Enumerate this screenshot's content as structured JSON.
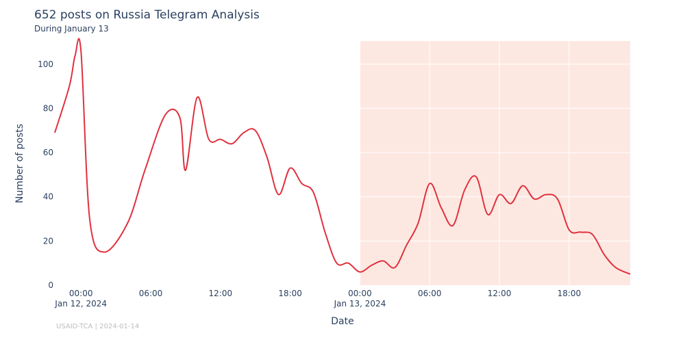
{
  "title": "652 posts on Russia Telegram Analysis",
  "subtitle": "During January 13",
  "footer": "USAID-TCA | 2024-01-14",
  "chart_data": {
    "type": "line",
    "xlabel": "Date",
    "ylabel": "Number of posts",
    "xlim": [
      "2024-01-11 21:45",
      "2024-01-13 23:15"
    ],
    "ylim": [
      0,
      112
    ],
    "yticks": [
      0,
      20,
      40,
      60,
      80,
      100
    ],
    "xticks": [
      {
        "time": "2024-01-12 00:00",
        "label": "00:00",
        "sublabel": "Jan 12, 2024"
      },
      {
        "time": "2024-01-12 06:00",
        "label": "06:00",
        "sublabel": ""
      },
      {
        "time": "2024-01-12 12:00",
        "label": "12:00",
        "sublabel": ""
      },
      {
        "time": "2024-01-12 18:00",
        "label": "18:00",
        "sublabel": ""
      },
      {
        "time": "2024-01-13 00:00",
        "label": "00:00",
        "sublabel": "Jan 13, 2024"
      },
      {
        "time": "2024-01-13 06:00",
        "label": "06:00",
        "sublabel": ""
      },
      {
        "time": "2024-01-13 12:00",
        "label": "12:00",
        "sublabel": ""
      },
      {
        "time": "2024-01-13 18:00",
        "label": "18:00",
        "sublabel": ""
      }
    ],
    "highlight": {
      "start": "2024-01-13 00:00",
      "end": "2024-01-13 23:15",
      "color": "#fde8e1"
    },
    "series": [
      {
        "color": "#e0303e",
        "x": [
          "2024-01-11 21:45",
          "2024-01-11 23:00",
          "2024-01-11 23:30",
          "2024-01-12 00:00",
          "2024-01-12 00:45",
          "2024-01-12 02:00",
          "2024-01-12 04:00",
          "2024-01-12 05:30",
          "2024-01-12 07:15",
          "2024-01-12 08:30",
          "2024-01-12 09:00",
          "2024-01-12 10:00",
          "2024-01-12 11:00",
          "2024-01-12 12:00",
          "2024-01-12 13:00",
          "2024-01-12 14:00",
          "2024-01-12 15:00",
          "2024-01-12 16:00",
          "2024-01-12 17:00",
          "2024-01-12 18:00",
          "2024-01-12 19:00",
          "2024-01-12 20:00",
          "2024-01-12 21:00",
          "2024-01-12 22:00",
          "2024-01-12 23:00",
          "2024-01-13 00:00",
          "2024-01-13 01:00",
          "2024-01-13 02:00",
          "2024-01-13 03:00",
          "2024-01-13 04:00",
          "2024-01-13 05:00",
          "2024-01-13 06:00",
          "2024-01-13 07:00",
          "2024-01-13 08:00",
          "2024-01-13 09:00",
          "2024-01-13 10:00",
          "2024-01-13 11:00",
          "2024-01-13 12:00",
          "2024-01-13 13:00",
          "2024-01-13 14:00",
          "2024-01-13 15:00",
          "2024-01-13 16:00",
          "2024-01-13 17:00",
          "2024-01-13 18:00",
          "2024-01-13 19:00",
          "2024-01-13 20:00",
          "2024-01-13 21:00",
          "2024-01-13 22:00",
          "2024-01-13 23:15"
        ],
        "y": [
          69,
          90,
          104,
          106,
          30,
          15,
          28,
          52,
          77,
          76,
          52,
          85,
          66,
          66,
          64,
          69,
          70,
          58,
          41,
          53,
          46,
          42,
          24,
          10,
          10,
          6,
          9,
          11,
          8,
          18,
          28,
          46,
          35,
          27,
          43,
          49,
          32,
          41,
          37,
          45,
          39,
          41,
          39,
          25,
          24,
          23,
          14,
          8,
          5
        ]
      }
    ]
  }
}
